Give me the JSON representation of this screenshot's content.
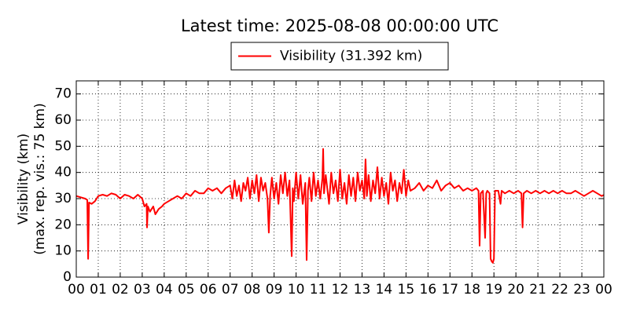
{
  "chart_data": {
    "type": "line",
    "title": "Latest time: 2025-08-08 00:00:00 UTC",
    "ylabel": [
      "Visibility (km)",
      "(max. rep. vis.: 75 km)"
    ],
    "legend": "top",
    "grid": true,
    "xlim": [
      0,
      24
    ],
    "xticks": [
      {
        "value": 0,
        "label": "00"
      },
      {
        "value": 1,
        "label": "01"
      },
      {
        "value": 2,
        "label": "02"
      },
      {
        "value": 3,
        "label": "03"
      },
      {
        "value": 4,
        "label": "04"
      },
      {
        "value": 5,
        "label": "05"
      },
      {
        "value": 6,
        "label": "06"
      },
      {
        "value": 7,
        "label": "07"
      },
      {
        "value": 8,
        "label": "08"
      },
      {
        "value": 9,
        "label": "09"
      },
      10,
      11,
      12,
      13,
      14,
      15,
      16,
      17,
      18,
      19,
      20,
      21,
      22,
      23,
      {
        "value": 24,
        "label": "00"
      }
    ],
    "ylim": [
      0,
      75
    ],
    "yticks": [
      0,
      10,
      20,
      30,
      40,
      50,
      60,
      70
    ],
    "x": [
      0,
      0.2,
      0.4,
      0.5,
      0.54,
      0.58,
      0.7,
      0.85,
      1.0,
      1.2,
      1.4,
      1.6,
      1.8,
      2.0,
      2.2,
      2.4,
      2.6,
      2.8,
      3.0,
      3.1,
      3.2,
      3.22,
      3.26,
      3.35,
      3.5,
      3.6,
      3.75,
      3.9,
      4.0,
      4.2,
      4.4,
      4.6,
      4.8,
      5.0,
      5.2,
      5.4,
      5.6,
      5.8,
      6.0,
      6.2,
      6.4,
      6.6,
      6.8,
      7.0,
      7.1,
      7.2,
      7.3,
      7.4,
      7.5,
      7.6,
      7.7,
      7.8,
      7.9,
      8.0,
      8.1,
      8.2,
      8.3,
      8.4,
      8.5,
      8.6,
      8.7,
      8.76,
      8.82,
      8.9,
      9.0,
      9.1,
      9.2,
      9.3,
      9.4,
      9.5,
      9.6,
      9.7,
      9.8,
      9.85,
      9.9,
      10.0,
      10.1,
      10.2,
      10.3,
      10.42,
      10.48,
      10.54,
      10.6,
      10.7,
      10.8,
      10.9,
      11.0,
      11.1,
      11.2,
      11.23,
      11.27,
      11.35,
      11.5,
      11.6,
      11.7,
      11.8,
      11.9,
      12.0,
      12.1,
      12.2,
      12.3,
      12.4,
      12.5,
      12.6,
      12.7,
      12.8,
      12.9,
      13.0,
      13.1,
      13.16,
      13.22,
      13.3,
      13.4,
      13.5,
      13.6,
      13.7,
      13.8,
      13.9,
      14.0,
      14.1,
      14.2,
      14.3,
      14.4,
      14.5,
      14.6,
      14.7,
      14.8,
      14.9,
      15.0,
      15.1,
      15.2,
      15.4,
      15.6,
      15.8,
      16.0,
      16.2,
      16.4,
      16.6,
      16.8,
      17.0,
      17.2,
      17.4,
      17.6,
      17.8,
      18.0,
      18.2,
      18.3,
      18.35,
      18.4,
      18.5,
      18.6,
      18.65,
      18.7,
      18.8,
      18.85,
      18.9,
      18.95,
      19.0,
      19.05,
      19.2,
      19.3,
      19.35,
      19.5,
      19.7,
      19.9,
      20.1,
      20.25,
      20.3,
      20.35,
      20.5,
      20.7,
      20.9,
      21.1,
      21.3,
      21.5,
      21.7,
      21.9,
      22.1,
      22.3,
      22.5,
      22.7,
      22.9,
      23.1,
      23.3,
      23.5,
      23.7,
      23.9,
      24.0
    ],
    "series": [
      {
        "name": "Visibility (31.392 km)",
        "color": "#ff0000",
        "values": [
          31,
          30.5,
          30,
          29.5,
          7,
          28.5,
          28,
          29,
          31,
          31.5,
          31,
          32,
          31.5,
          30,
          31.5,
          31,
          30,
          31.5,
          30,
          27,
          28,
          19,
          27,
          25,
          27,
          24,
          26,
          27,
          28,
          29,
          30,
          31,
          30,
          32,
          31,
          33,
          32,
          32,
          34,
          33,
          34,
          32,
          34,
          35,
          30,
          37,
          31,
          35,
          29,
          36,
          33,
          38,
          30,
          37,
          32,
          39,
          29,
          38,
          33,
          36,
          30,
          17,
          31,
          38,
          30,
          36,
          28,
          39,
          32,
          40,
          31,
          37,
          8,
          34,
          29,
          40,
          30,
          39,
          28,
          36,
          6.5,
          33,
          38,
          29,
          40,
          31,
          37,
          30,
          38,
          49,
          32,
          39,
          28,
          40,
          32,
          37,
          29,
          41,
          30,
          36,
          28,
          39,
          31,
          38,
          29,
          40,
          33,
          37,
          30,
          45,
          31,
          39,
          29,
          37,
          32,
          42,
          30,
          38,
          31,
          36,
          28,
          40,
          33,
          37,
          29,
          36,
          32,
          41,
          31,
          37,
          33,
          34,
          36,
          33,
          35,
          34,
          37,
          33,
          35,
          36,
          34,
          35,
          33,
          34,
          33,
          34,
          33,
          12,
          32,
          33,
          15,
          32,
          33,
          32,
          7,
          6,
          5.5,
          7,
          33,
          33,
          28,
          33,
          32,
          33,
          32,
          33,
          32,
          19,
          32,
          33,
          32,
          33,
          32,
          33,
          32,
          33,
          32,
          33,
          32,
          32,
          33,
          32,
          31,
          32,
          33,
          32,
          31,
          31.392
        ]
      }
    ]
  }
}
